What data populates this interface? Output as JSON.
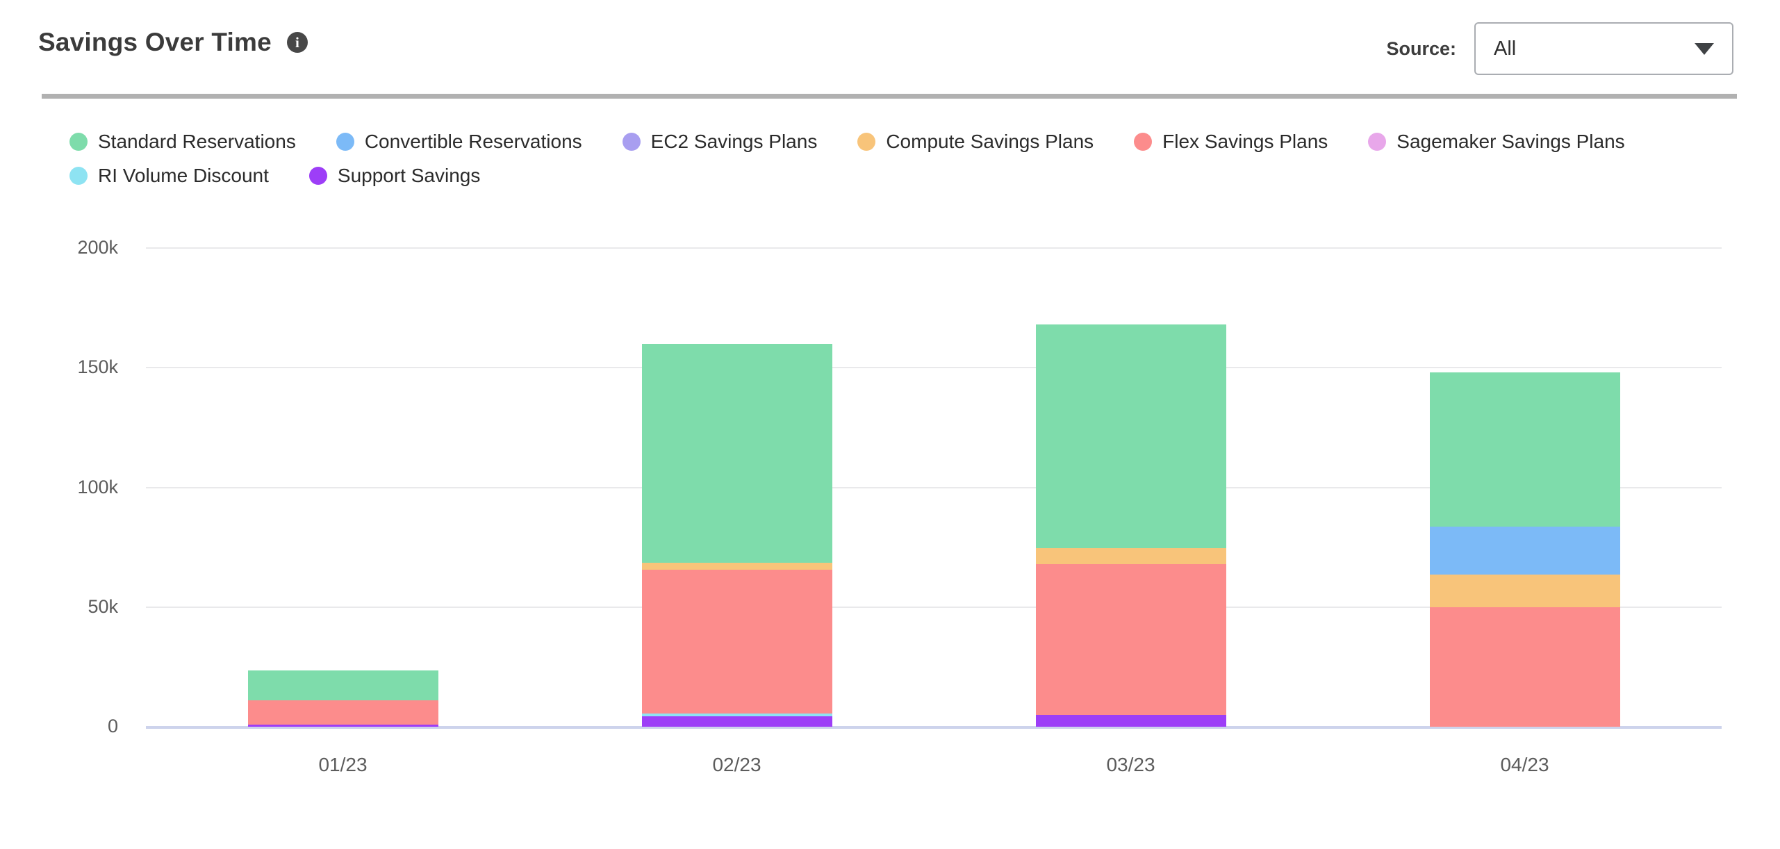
{
  "header": {
    "title": "Savings Over Time",
    "info_icon": "i",
    "source_label": "Source:",
    "source_value": "All"
  },
  "legend": {
    "items": [
      {
        "label": "Standard Reservations",
        "color": "#7edcab"
      },
      {
        "label": "Convertible Reservations",
        "color": "#7cbaf7"
      },
      {
        "label": "EC2 Savings Plans",
        "color": "#a89ef0"
      },
      {
        "label": "Compute Savings Plans",
        "color": "#f8c47a"
      },
      {
        "label": "Flex Savings Plans",
        "color": "#fc8c8c"
      },
      {
        "label": "Sagemaker Savings Plans",
        "color": "#e8a7ea"
      },
      {
        "label": "RI Volume Discount",
        "color": "#8ee3f2"
      },
      {
        "label": "Support Savings",
        "color": "#9d3ef7"
      }
    ]
  },
  "chart_data": {
    "type": "bar",
    "stacked": true,
    "title": "Savings Over Time",
    "categories": [
      "01/23",
      "02/23",
      "03/23",
      "04/23"
    ],
    "series": [
      {
        "name": "Support Savings",
        "color": "#9d3ef7",
        "values": [
          1000,
          4500,
          5000,
          0
        ]
      },
      {
        "name": "RI Volume Discount",
        "color": "#8ee3f2",
        "values": [
          0,
          1000,
          0,
          0
        ]
      },
      {
        "name": "Flex Savings Plans",
        "color": "#fc8c8c",
        "values": [
          10000,
          60000,
          63000,
          50000
        ]
      },
      {
        "name": "Compute Savings Plans",
        "color": "#f8c47a",
        "values": [
          0,
          3000,
          6500,
          13500
        ]
      },
      {
        "name": "Convertible Reservations",
        "color": "#7cbaf7",
        "values": [
          0,
          0,
          0,
          20000
        ]
      },
      {
        "name": "EC2 Savings Plans",
        "color": "#a89ef0",
        "values": [
          0,
          0,
          0,
          0
        ]
      },
      {
        "name": "Sagemaker Savings Plans",
        "color": "#e8a7ea",
        "values": [
          0,
          0,
          0,
          0
        ]
      },
      {
        "name": "Standard Reservations",
        "color": "#7edcab",
        "values": [
          12500,
          91500,
          93500,
          64500
        ]
      }
    ],
    "totals": [
      23500,
      160000,
      168000,
      148000
    ],
    "stack_order": "bottom-to-top",
    "xlabel": "",
    "ylabel": "",
    "ylim": [
      0,
      200000
    ],
    "y_ticks": [
      {
        "label": "0",
        "value": 0
      },
      {
        "label": "50k",
        "value": 50000
      },
      {
        "label": "100k",
        "value": 100000
      },
      {
        "label": "150k",
        "value": 150000
      },
      {
        "label": "200k",
        "value": 200000
      }
    ],
    "grid": "horizontal",
    "legend_position": "top",
    "grid_color": "#e9e9eb",
    "axis_color": "#cdd3ec"
  }
}
